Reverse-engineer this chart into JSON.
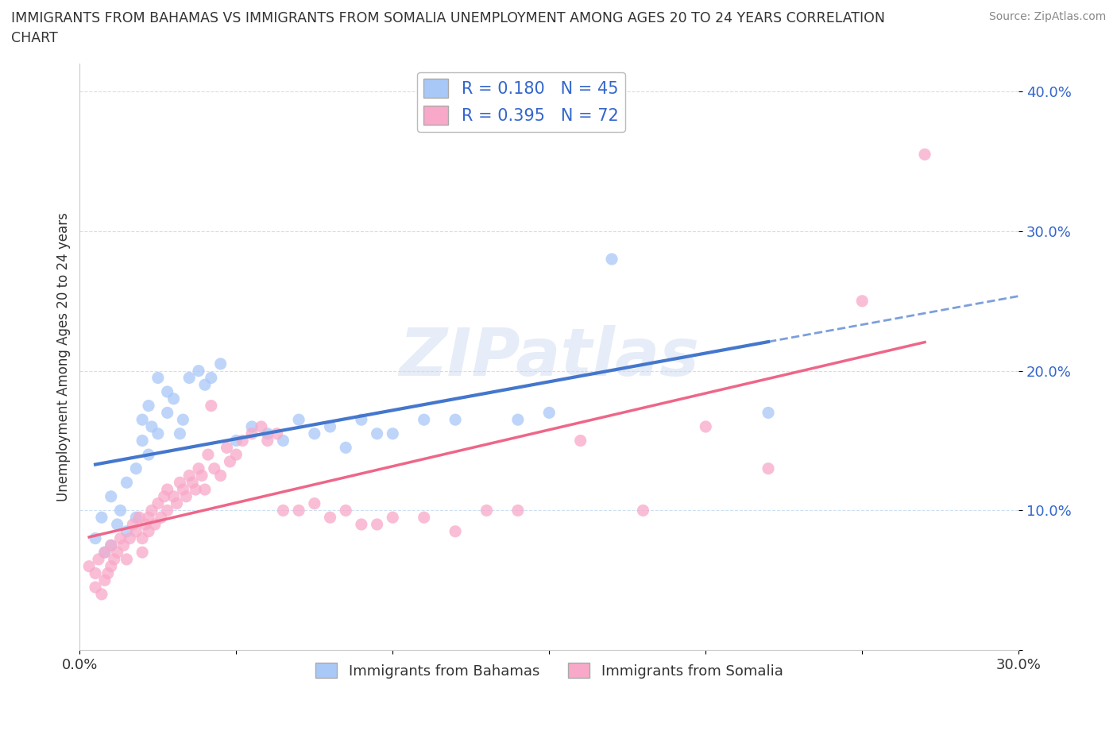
{
  "title_line1": "IMMIGRANTS FROM BAHAMAS VS IMMIGRANTS FROM SOMALIA UNEMPLOYMENT AMONG AGES 20 TO 24 YEARS CORRELATION",
  "title_line2": "CHART",
  "source_text": "Source: ZipAtlas.com",
  "ylabel": "Unemployment Among Ages 20 to 24 years",
  "xlim": [
    0.0,
    0.3
  ],
  "ylim": [
    0.0,
    0.42
  ],
  "R_bahamas": 0.18,
  "N_bahamas": 45,
  "R_somalia": 0.395,
  "N_somalia": 72,
  "color_bahamas": "#a8c8f8",
  "color_somalia": "#f8a8c8",
  "trendline_bahamas": "#4477cc",
  "trendline_somalia": "#ee6688",
  "watermark": "ZIPatlas",
  "bahamas_scatter_x": [
    0.005,
    0.007,
    0.008,
    0.01,
    0.01,
    0.012,
    0.013,
    0.015,
    0.015,
    0.018,
    0.018,
    0.02,
    0.02,
    0.022,
    0.022,
    0.023,
    0.025,
    0.025,
    0.028,
    0.028,
    0.03,
    0.032,
    0.033,
    0.035,
    0.038,
    0.04,
    0.042,
    0.045,
    0.05,
    0.055,
    0.06,
    0.065,
    0.07,
    0.075,
    0.08,
    0.085,
    0.09,
    0.095,
    0.1,
    0.11,
    0.12,
    0.14,
    0.15,
    0.17,
    0.22
  ],
  "bahamas_scatter_y": [
    0.08,
    0.095,
    0.07,
    0.075,
    0.11,
    0.09,
    0.1,
    0.12,
    0.085,
    0.095,
    0.13,
    0.15,
    0.165,
    0.14,
    0.175,
    0.16,
    0.155,
    0.195,
    0.17,
    0.185,
    0.18,
    0.155,
    0.165,
    0.195,
    0.2,
    0.19,
    0.195,
    0.205,
    0.15,
    0.16,
    0.155,
    0.15,
    0.165,
    0.155,
    0.16,
    0.145,
    0.165,
    0.155,
    0.155,
    0.165,
    0.165,
    0.165,
    0.17,
    0.28,
    0.17
  ],
  "somalia_scatter_x": [
    0.003,
    0.005,
    0.005,
    0.006,
    0.007,
    0.008,
    0.008,
    0.009,
    0.01,
    0.01,
    0.011,
    0.012,
    0.013,
    0.014,
    0.015,
    0.016,
    0.017,
    0.018,
    0.019,
    0.02,
    0.02,
    0.021,
    0.022,
    0.022,
    0.023,
    0.024,
    0.025,
    0.026,
    0.027,
    0.028,
    0.028,
    0.03,
    0.031,
    0.032,
    0.033,
    0.034,
    0.035,
    0.036,
    0.037,
    0.038,
    0.039,
    0.04,
    0.041,
    0.042,
    0.043,
    0.045,
    0.047,
    0.048,
    0.05,
    0.052,
    0.055,
    0.058,
    0.06,
    0.063,
    0.065,
    0.07,
    0.075,
    0.08,
    0.085,
    0.09,
    0.095,
    0.1,
    0.11,
    0.12,
    0.13,
    0.14,
    0.16,
    0.18,
    0.2,
    0.22,
    0.25,
    0.27
  ],
  "somalia_scatter_y": [
    0.06,
    0.045,
    0.055,
    0.065,
    0.04,
    0.05,
    0.07,
    0.055,
    0.06,
    0.075,
    0.065,
    0.07,
    0.08,
    0.075,
    0.065,
    0.08,
    0.09,
    0.085,
    0.095,
    0.07,
    0.08,
    0.09,
    0.085,
    0.095,
    0.1,
    0.09,
    0.105,
    0.095,
    0.11,
    0.1,
    0.115,
    0.11,
    0.105,
    0.12,
    0.115,
    0.11,
    0.125,
    0.12,
    0.115,
    0.13,
    0.125,
    0.115,
    0.14,
    0.175,
    0.13,
    0.125,
    0.145,
    0.135,
    0.14,
    0.15,
    0.155,
    0.16,
    0.15,
    0.155,
    0.1,
    0.1,
    0.105,
    0.095,
    0.1,
    0.09,
    0.09,
    0.095,
    0.095,
    0.085,
    0.1,
    0.1,
    0.15,
    0.1,
    0.16,
    0.13,
    0.25,
    0.355
  ]
}
